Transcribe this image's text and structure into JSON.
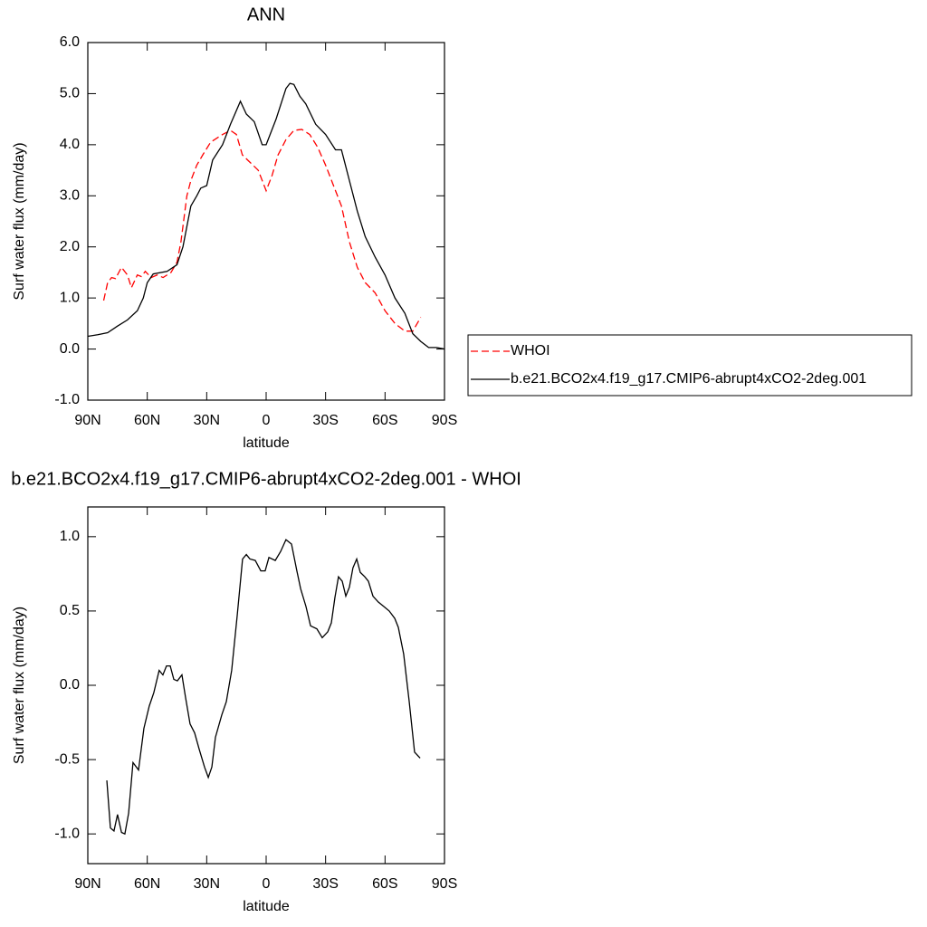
{
  "chart_data": [
    {
      "type": "line",
      "title": "ANN",
      "x_label": "latitude",
      "y_label": "Surf water flux (mm/day)",
      "xlim": [
        90,
        -90
      ],
      "ylim": [
        -1,
        6
      ],
      "xticks": [
        {
          "value": 90,
          "label": "90N"
        },
        {
          "value": 60,
          "label": "60N"
        },
        {
          "value": 30,
          "label": "30N"
        },
        0,
        {
          "value": -30,
          "label": "30S"
        },
        {
          "value": -60,
          "label": "60S"
        },
        {
          "value": -90,
          "label": "90S"
        }
      ],
      "yticks": [
        {
          "value": -1,
          "label": "-1.0"
        },
        {
          "value": 0,
          "label": "0.0"
        },
        {
          "value": 1,
          "label": "1.0"
        },
        {
          "value": 2,
          "label": "2.0"
        },
        {
          "value": 3,
          "label": "3.0"
        },
        {
          "value": 4,
          "label": "4.0"
        },
        {
          "value": 5,
          "label": "5.0"
        },
        {
          "value": 6,
          "label": "6.0"
        }
      ],
      "legend": "right",
      "series": [
        {
          "name": "WHOI",
          "color": "#ff0000",
          "line_style": "dashed",
          "x": [
            82,
            80,
            78,
            76,
            73,
            70,
            68,
            65,
            63,
            61,
            58,
            55,
            52,
            48,
            45,
            43,
            40,
            38,
            35,
            32,
            28,
            22,
            18,
            15,
            12,
            8,
            4,
            0,
            -3,
            -6,
            -10,
            -14,
            -18,
            -22,
            -26,
            -30,
            -35,
            -38,
            -42,
            -46,
            -50,
            -55,
            -60,
            -65,
            -70,
            -74,
            -78
          ],
          "values": [
            0.95,
            1.3,
            1.4,
            1.38,
            1.6,
            1.45,
            1.2,
            1.45,
            1.42,
            1.52,
            1.4,
            1.45,
            1.4,
            1.5,
            1.7,
            2.1,
            3.0,
            3.3,
            3.6,
            3.8,
            4.05,
            4.2,
            4.28,
            4.2,
            3.8,
            3.65,
            3.5,
            3.1,
            3.4,
            3.8,
            4.1,
            4.28,
            4.3,
            4.2,
            3.95,
            3.6,
            3.1,
            2.8,
            2.1,
            1.6,
            1.3,
            1.1,
            0.75,
            0.5,
            0.35,
            0.35,
            0.62
          ]
        },
        {
          "name": "b.e21.BCO2x4.f19_g17.CMIP6-abrupt4xCO2-2deg.001",
          "color": "#000000",
          "line_style": "solid",
          "x": [
            90,
            85,
            80,
            75,
            70,
            65,
            62,
            60,
            57,
            50,
            45,
            42,
            40,
            38,
            35,
            33,
            30,
            27,
            22,
            18,
            13,
            10,
            6,
            2,
            0,
            -5,
            -10,
            -12,
            -14,
            -17,
            -20,
            -25,
            -30,
            -35,
            -38,
            -42,
            -46,
            -50,
            -55,
            -60,
            -65,
            -70,
            -74,
            -78,
            -82,
            -86,
            -90
          ],
          "values": [
            0.25,
            0.28,
            0.32,
            0.45,
            0.57,
            0.75,
            1.0,
            1.3,
            1.47,
            1.52,
            1.65,
            2.0,
            2.4,
            2.8,
            3.0,
            3.15,
            3.2,
            3.7,
            4.0,
            4.4,
            4.85,
            4.6,
            4.45,
            4.0,
            4.0,
            4.5,
            5.1,
            5.2,
            5.18,
            4.95,
            4.8,
            4.4,
            4.2,
            3.9,
            3.9,
            3.3,
            2.7,
            2.2,
            1.8,
            1.45,
            1.0,
            0.7,
            0.3,
            0.15,
            0.03,
            0.03,
            0.0
          ]
        }
      ]
    },
    {
      "type": "line",
      "title": "b.e21.BCO2x4.f19_g17.CMIP6-abrupt4xCO2-2deg.001 - WHOI",
      "x_label": "latitude",
      "y_label": "Surf water flux (mm/day)",
      "xlim": [
        90,
        -90
      ],
      "ylim": [
        -1.2,
        1.2
      ],
      "xticks": [
        {
          "value": 90,
          "label": "90N"
        },
        {
          "value": 60,
          "label": "60N"
        },
        {
          "value": 30,
          "label": "30N"
        },
        0,
        {
          "value": -30,
          "label": "30S"
        },
        {
          "value": -60,
          "label": "60S"
        },
        {
          "value": -90,
          "label": "90S"
        }
      ],
      "yticks": [
        {
          "value": -1,
          "label": "-1.0"
        },
        {
          "value": -0.5,
          "label": "-0.5"
        },
        {
          "value": 0,
          "label": "0.0"
        },
        0.5,
        {
          "value": 1,
          "label": "1.0"
        }
      ],
      "series": [
        {
          "color": "#000000",
          "line_style": "solid",
          "x": [
            80.4,
            78.6,
            76.8,
            75,
            73,
            71.3,
            69.4,
            67.2,
            64.4,
            61.7,
            59,
            56.7,
            54,
            52.1,
            50.3,
            48.4,
            46.6,
            44.8,
            42.5,
            40.7,
            38.4,
            36.1,
            33.8,
            31.1,
            29.2,
            27.4,
            25.6,
            22.4,
            20.1,
            17.4,
            14.6,
            11.9,
            10,
            8.2,
            5.5,
            2.7,
            0.5,
            -1.4,
            -4.6,
            -7.3,
            -10,
            -12.8,
            -15.5,
            -17.4,
            -20.1,
            -22.4,
            -25.6,
            -28.3,
            -31.1,
            -32.9,
            -34.7,
            -36.5,
            -38.4,
            -40.2,
            -42,
            -43.8,
            -45.7,
            -47.5,
            -49.8,
            -51.6,
            -53.9,
            -56.6,
            -59.4,
            -62.1,
            -64.9,
            -66.7,
            -69.4,
            -72.2,
            -74.9,
            -77.7
          ],
          "values": [
            -0.64,
            -0.96,
            -0.98,
            -0.87,
            -0.99,
            -1.0,
            -0.86,
            -0.52,
            -0.57,
            -0.29,
            -0.14,
            -0.05,
            0.1,
            0.07,
            0.13,
            0.13,
            0.04,
            0.03,
            0.07,
            -0.08,
            -0.26,
            -0.32,
            -0.43,
            -0.55,
            -0.62,
            -0.55,
            -0.35,
            -0.2,
            -0.11,
            0.1,
            0.47,
            0.85,
            0.88,
            0.85,
            0.84,
            0.77,
            0.77,
            0.86,
            0.84,
            0.9,
            0.98,
            0.95,
            0.77,
            0.65,
            0.53,
            0.4,
            0.38,
            0.32,
            0.36,
            0.42,
            0.59,
            0.73,
            0.7,
            0.6,
            0.66,
            0.79,
            0.85,
            0.76,
            0.73,
            0.7,
            0.6,
            0.56,
            0.53,
            0.5,
            0.45,
            0.39,
            0.21,
            -0.11,
            -0.45,
            -0.49
          ]
        }
      ]
    }
  ]
}
